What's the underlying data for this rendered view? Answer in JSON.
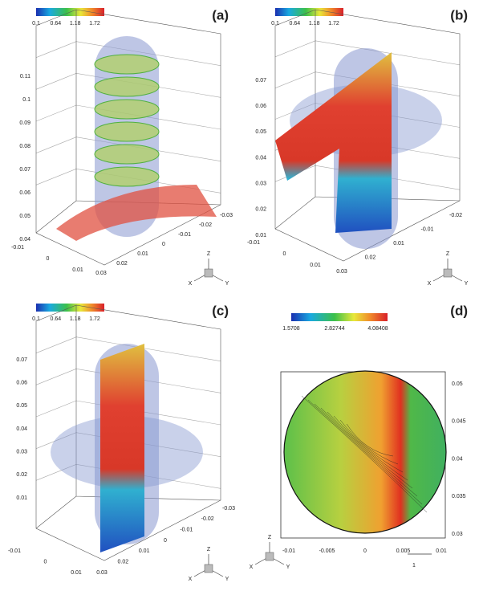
{
  "panels": [
    {
      "label": "(a)",
      "colorbar": [
        "0.1",
        "0.64",
        "1.18",
        "1.72"
      ],
      "z_ticks": [
        "0.11",
        "0.1",
        "0.09",
        "0.08",
        "0.07",
        "0.06",
        "0.05",
        "0.04"
      ],
      "x_ticks": [
        "-0.01",
        "0",
        "0.01"
      ],
      "y_ticks": [
        "0.03",
        "0.02",
        "0.01",
        "0",
        "-0.01",
        "-0.02",
        "-0.03"
      ],
      "triad": [
        "Z",
        "X",
        "Y"
      ]
    },
    {
      "label": "(b)",
      "colorbar": [
        "0.1",
        "0.64",
        "1.18",
        "1.72"
      ],
      "z_ticks": [
        "0.07",
        "0.06",
        "0.05",
        "0.04",
        "0.03",
        "0.02",
        "0.01"
      ],
      "x_ticks": [
        "-0.01",
        "0",
        "0.01"
      ],
      "y_ticks": [
        "0.03",
        "0.02",
        "0.01",
        "-0.01",
        "-0.02"
      ],
      "triad": [
        "Z",
        "X",
        "Y"
      ]
    },
    {
      "label": "(c)",
      "colorbar": [
        "0.1",
        "0.64",
        "1.18",
        "1.72"
      ],
      "z_ticks": [
        "0.07",
        "0.06",
        "0.05",
        "0.04",
        "0.03",
        "0.02",
        "0.01"
      ],
      "x_ticks": [
        "-0.01",
        "0",
        "0.01"
      ],
      "y_ticks": [
        "0.03",
        "0.02",
        "0.01",
        "0",
        "-0.01",
        "-0.02",
        "-0.03"
      ],
      "triad": [
        "Z",
        "X",
        "Y"
      ]
    },
    {
      "label": "(d)",
      "colorbar": [
        "1.5708",
        "2.82744",
        "4.08408"
      ],
      "y_ticks": [
        "0.05",
        "0.045",
        "0.04",
        "0.035",
        "0.03"
      ],
      "x_ticks": [
        "-0.01",
        "-0.005",
        "0",
        "0.005",
        "0.01"
      ],
      "triad": [
        "Z",
        "X",
        "Y"
      ],
      "scale": "1"
    }
  ]
}
